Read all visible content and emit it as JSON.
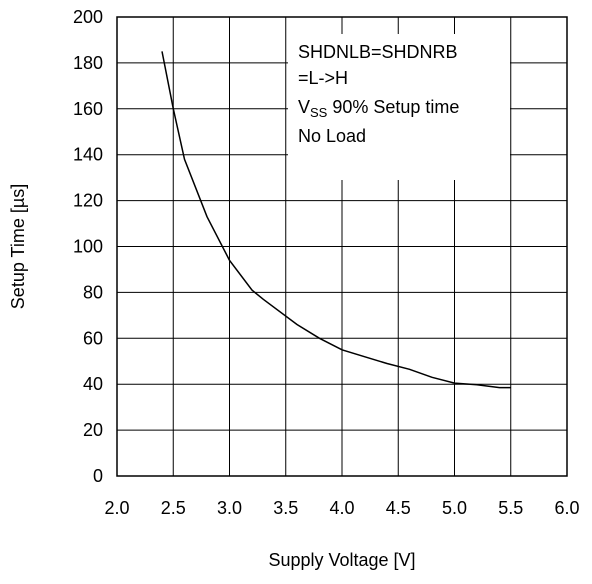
{
  "chart_data": {
    "type": "line",
    "title": "",
    "xlabel": "Supply Voltage [V]",
    "ylabel": "Setup Time [µs]",
    "xlim": [
      2.0,
      6.0
    ],
    "ylim": [
      0,
      200
    ],
    "x_ticks": [
      2.0,
      2.5,
      3.0,
      3.5,
      4.0,
      4.5,
      5.0,
      5.5,
      6.0
    ],
    "x_tick_labels": [
      "2.0",
      "2.5",
      "3.0",
      "3.5",
      "4.0",
      "4.5",
      "5.0",
      "5.5",
      "6.0"
    ],
    "y_ticks": [
      0,
      20,
      40,
      60,
      80,
      100,
      120,
      140,
      160,
      180,
      200
    ],
    "y_tick_labels": [
      "0",
      "20",
      "40",
      "60",
      "80",
      "100",
      "120",
      "140",
      "160",
      "180",
      "200"
    ],
    "grid": true,
    "series": [
      {
        "x": [
          2.4,
          2.5,
          2.6,
          2.8,
          3.0,
          3.2,
          3.3,
          3.6,
          3.8,
          4.0,
          4.2,
          4.4,
          4.6,
          4.8,
          5.0,
          5.2,
          5.4,
          5.5
        ],
        "y": [
          185,
          160,
          138,
          113,
          94,
          81,
          77,
          66,
          60,
          55,
          52,
          49,
          46.5,
          43,
          40.5,
          39.8,
          38.5,
          38.5
        ]
      }
    ],
    "annotation": {
      "lines": [
        {
          "main": "SHDNLB=SHDNRB"
        },
        {
          "main": "=L->H"
        },
        {
          "main": "V",
          "sub": "SS",
          "rest": " 90% Setup time"
        },
        {
          "main": "No Load"
        }
      ]
    },
    "colors": {
      "line": "#000000",
      "grid": "#000000",
      "background": "#ffffff"
    }
  }
}
